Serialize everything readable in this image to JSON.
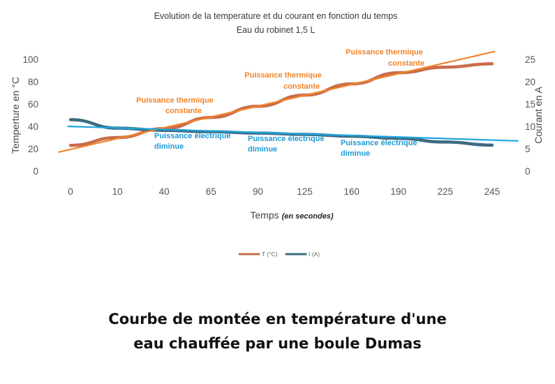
{
  "chart_data": {
    "type": "line",
    "title": "Evolution de la temperature et du courant en fonction du temps",
    "subtitle": "Eau du robinet 1,5 L",
    "categories": [
      "0",
      "10",
      "40",
      "65",
      "90",
      "125",
      "160",
      "190",
      "225",
      "245"
    ],
    "xlabel": "Temps",
    "xlabel_note": "(en secondes)",
    "ylabel_left": "Temperture en °C",
    "ylabel_right": "Courant en A",
    "ylim_left": [
      0,
      100
    ],
    "yticks_left": [
      0,
      20,
      40,
      60,
      80,
      100
    ],
    "ylim_right": [
      0,
      25
    ],
    "yticks_right": [
      0,
      5,
      10,
      15,
      20,
      25
    ],
    "grid": false,
    "legend_position": "bottom",
    "series": [
      {
        "name": "T (°C)",
        "axis": "left",
        "color": "#c96d4c",
        "values": [
          23,
          30,
          38,
          48,
          58,
          68,
          78,
          88,
          93,
          96
        ]
      },
      {
        "name": "I (A)",
        "axis": "right",
        "color": "#3d6b82",
        "values": [
          11.5,
          9.6,
          9.1,
          8.8,
          8.5,
          8.2,
          7.8,
          7.3,
          6.5,
          5.8
        ]
      }
    ],
    "overlays": [
      {
        "kind": "trend-line",
        "color": "#f0842b",
        "x": [
          -0.25,
          9.05
        ],
        "y_left": [
          17,
          107
        ]
      },
      {
        "kind": "trend-line",
        "color": "#1ea6e0",
        "x": [
          -0.05,
          9.55
        ],
        "y_left": [
          40,
          27
        ]
      }
    ],
    "annotations": [
      {
        "color": "#f0842b",
        "lines": [
          "Puissance thermique",
          "constante"
        ]
      },
      {
        "color": "#f0842b",
        "lines": [
          "Puissance thermique",
          "constante"
        ]
      },
      {
        "color": "#f0842b",
        "lines": [
          "Puissance thermique",
          "constante"
        ]
      },
      {
        "color": "#1e9ad6",
        "lines": [
          "Puissance électrique",
          "diminue"
        ]
      },
      {
        "color": "#1e9ad6",
        "lines": [
          "Puissance électrique",
          "diminue"
        ]
      },
      {
        "color": "#1e9ad6",
        "lines": [
          "Puissance électrique",
          "diminue"
        ]
      }
    ]
  },
  "caption": {
    "line1": "Courbe de montée en température d'une",
    "line2": "eau chauffée par une boule Dumas"
  }
}
